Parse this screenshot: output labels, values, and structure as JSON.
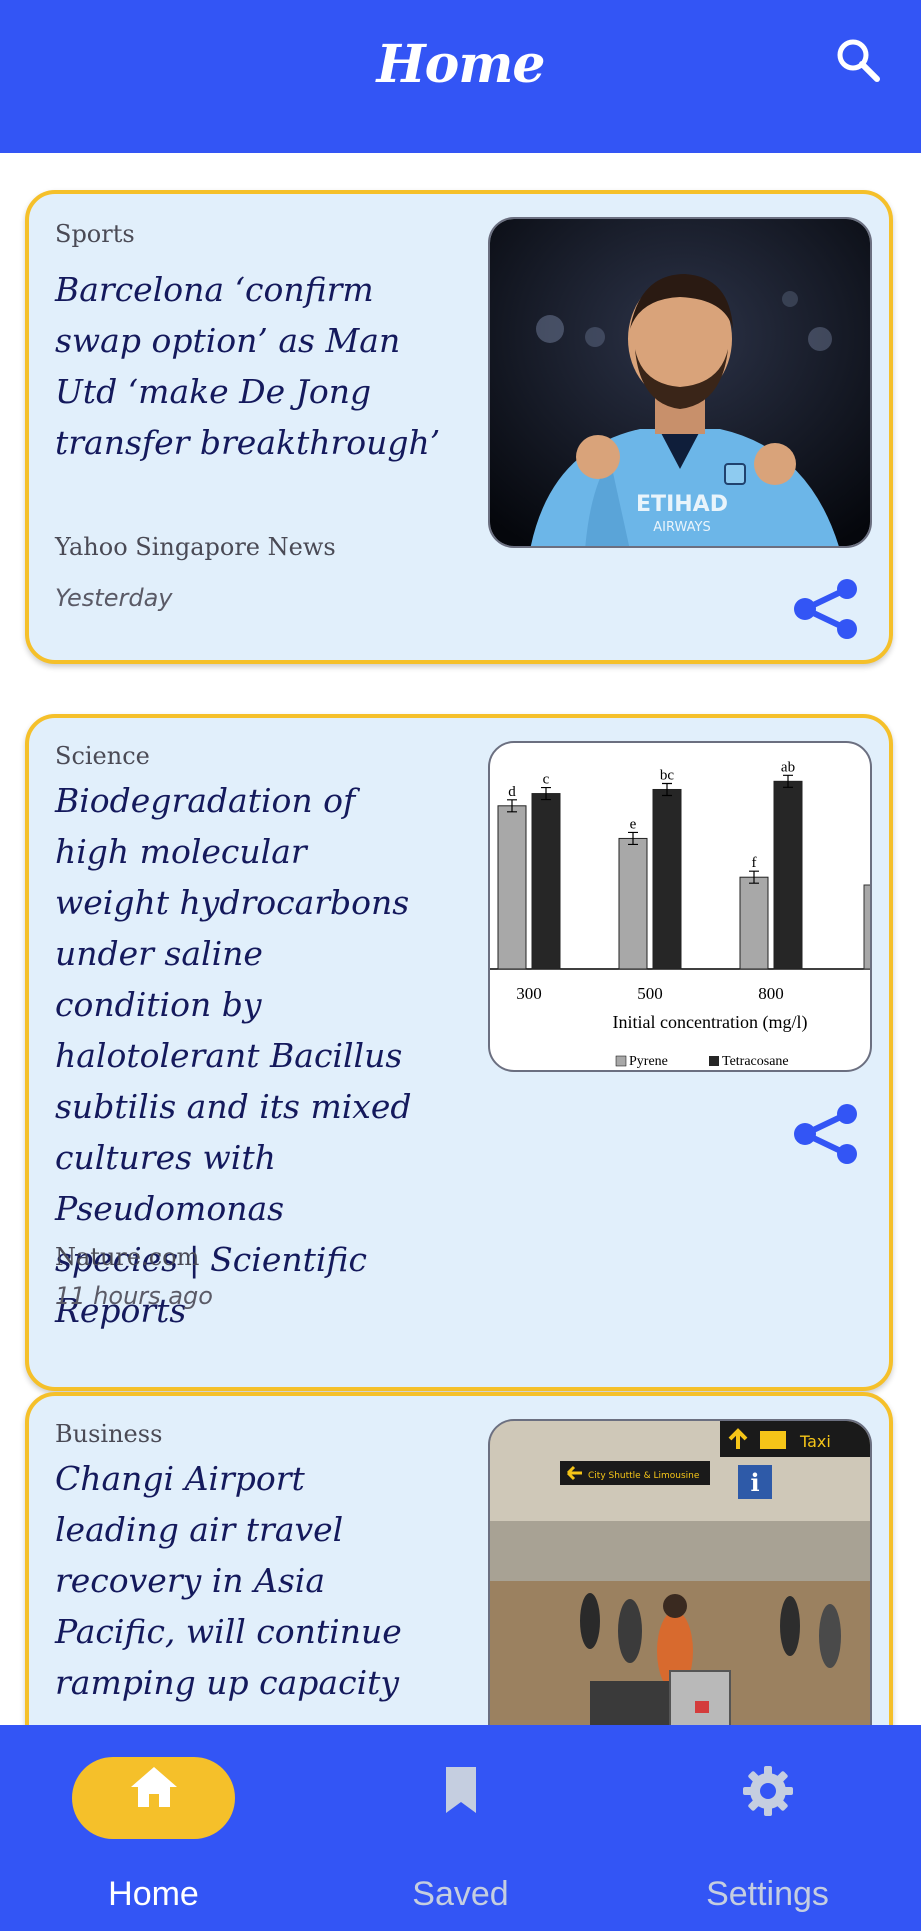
{
  "appbar": {
    "title": "Home",
    "search_icon": "search-icon"
  },
  "articles": [
    {
      "category": "Sports",
      "title": "Barcelona ‘confirm swap option’ as Man Utd ‘make De Jong transfer breakthrough’",
      "source": "Yahoo Singapore News",
      "time": "Yesterday",
      "image": "football-player-photo",
      "share_icon": "share-icon"
    },
    {
      "category": "Science",
      "title": "Biodegradation of high molecular weight hydrocarbons under saline condition by halotolerant Bacillus subtilis and its mixed cultures with Pseudomonas species | Scientific Reports",
      "source": "Nature.com",
      "time": "11 hours ago",
      "image": "bar-chart-figure",
      "share_icon": "share-icon",
      "chart_data": {
        "type": "bar",
        "categories": [
          "300",
          "500",
          "800"
        ],
        "series": [
          {
            "name": "Pyrene",
            "values": [
              80,
              64,
              45
            ],
            "color": "#a8a8a8"
          },
          {
            "name": "Tetracosane",
            "values": [
              86,
              88,
              92
            ],
            "color": "#262626"
          }
        ],
        "bar_labels": [
          [
            "d",
            "c"
          ],
          [
            "e",
            "bc"
          ],
          [
            "f",
            "ab"
          ]
        ],
        "xlabel": "Initial concentration (mg/l)",
        "ylim": [
          0,
          100
        ],
        "legend": "bottom"
      }
    },
    {
      "category": "Business",
      "title": "Changi Airport leading air travel recovery in Asia Pacific, will continue ramping up capacity",
      "image": "airport-terminal-photo",
      "signs": {
        "taxi": "Taxi",
        "city_shuttle": "City Shuttle & Limousine"
      }
    }
  ],
  "bottom_nav": {
    "items": [
      {
        "label": "Home",
        "icon": "home-icon",
        "active": true
      },
      {
        "label": "Saved",
        "icon": "bookmark-icon",
        "active": false
      },
      {
        "label": "Settings",
        "icon": "gear-icon",
        "active": false
      }
    ],
    "colors": {
      "bar": "#3355f5",
      "active_pill": "#f5c02a",
      "active_text": "#ffffff",
      "inactive": "#c5cee0"
    }
  }
}
